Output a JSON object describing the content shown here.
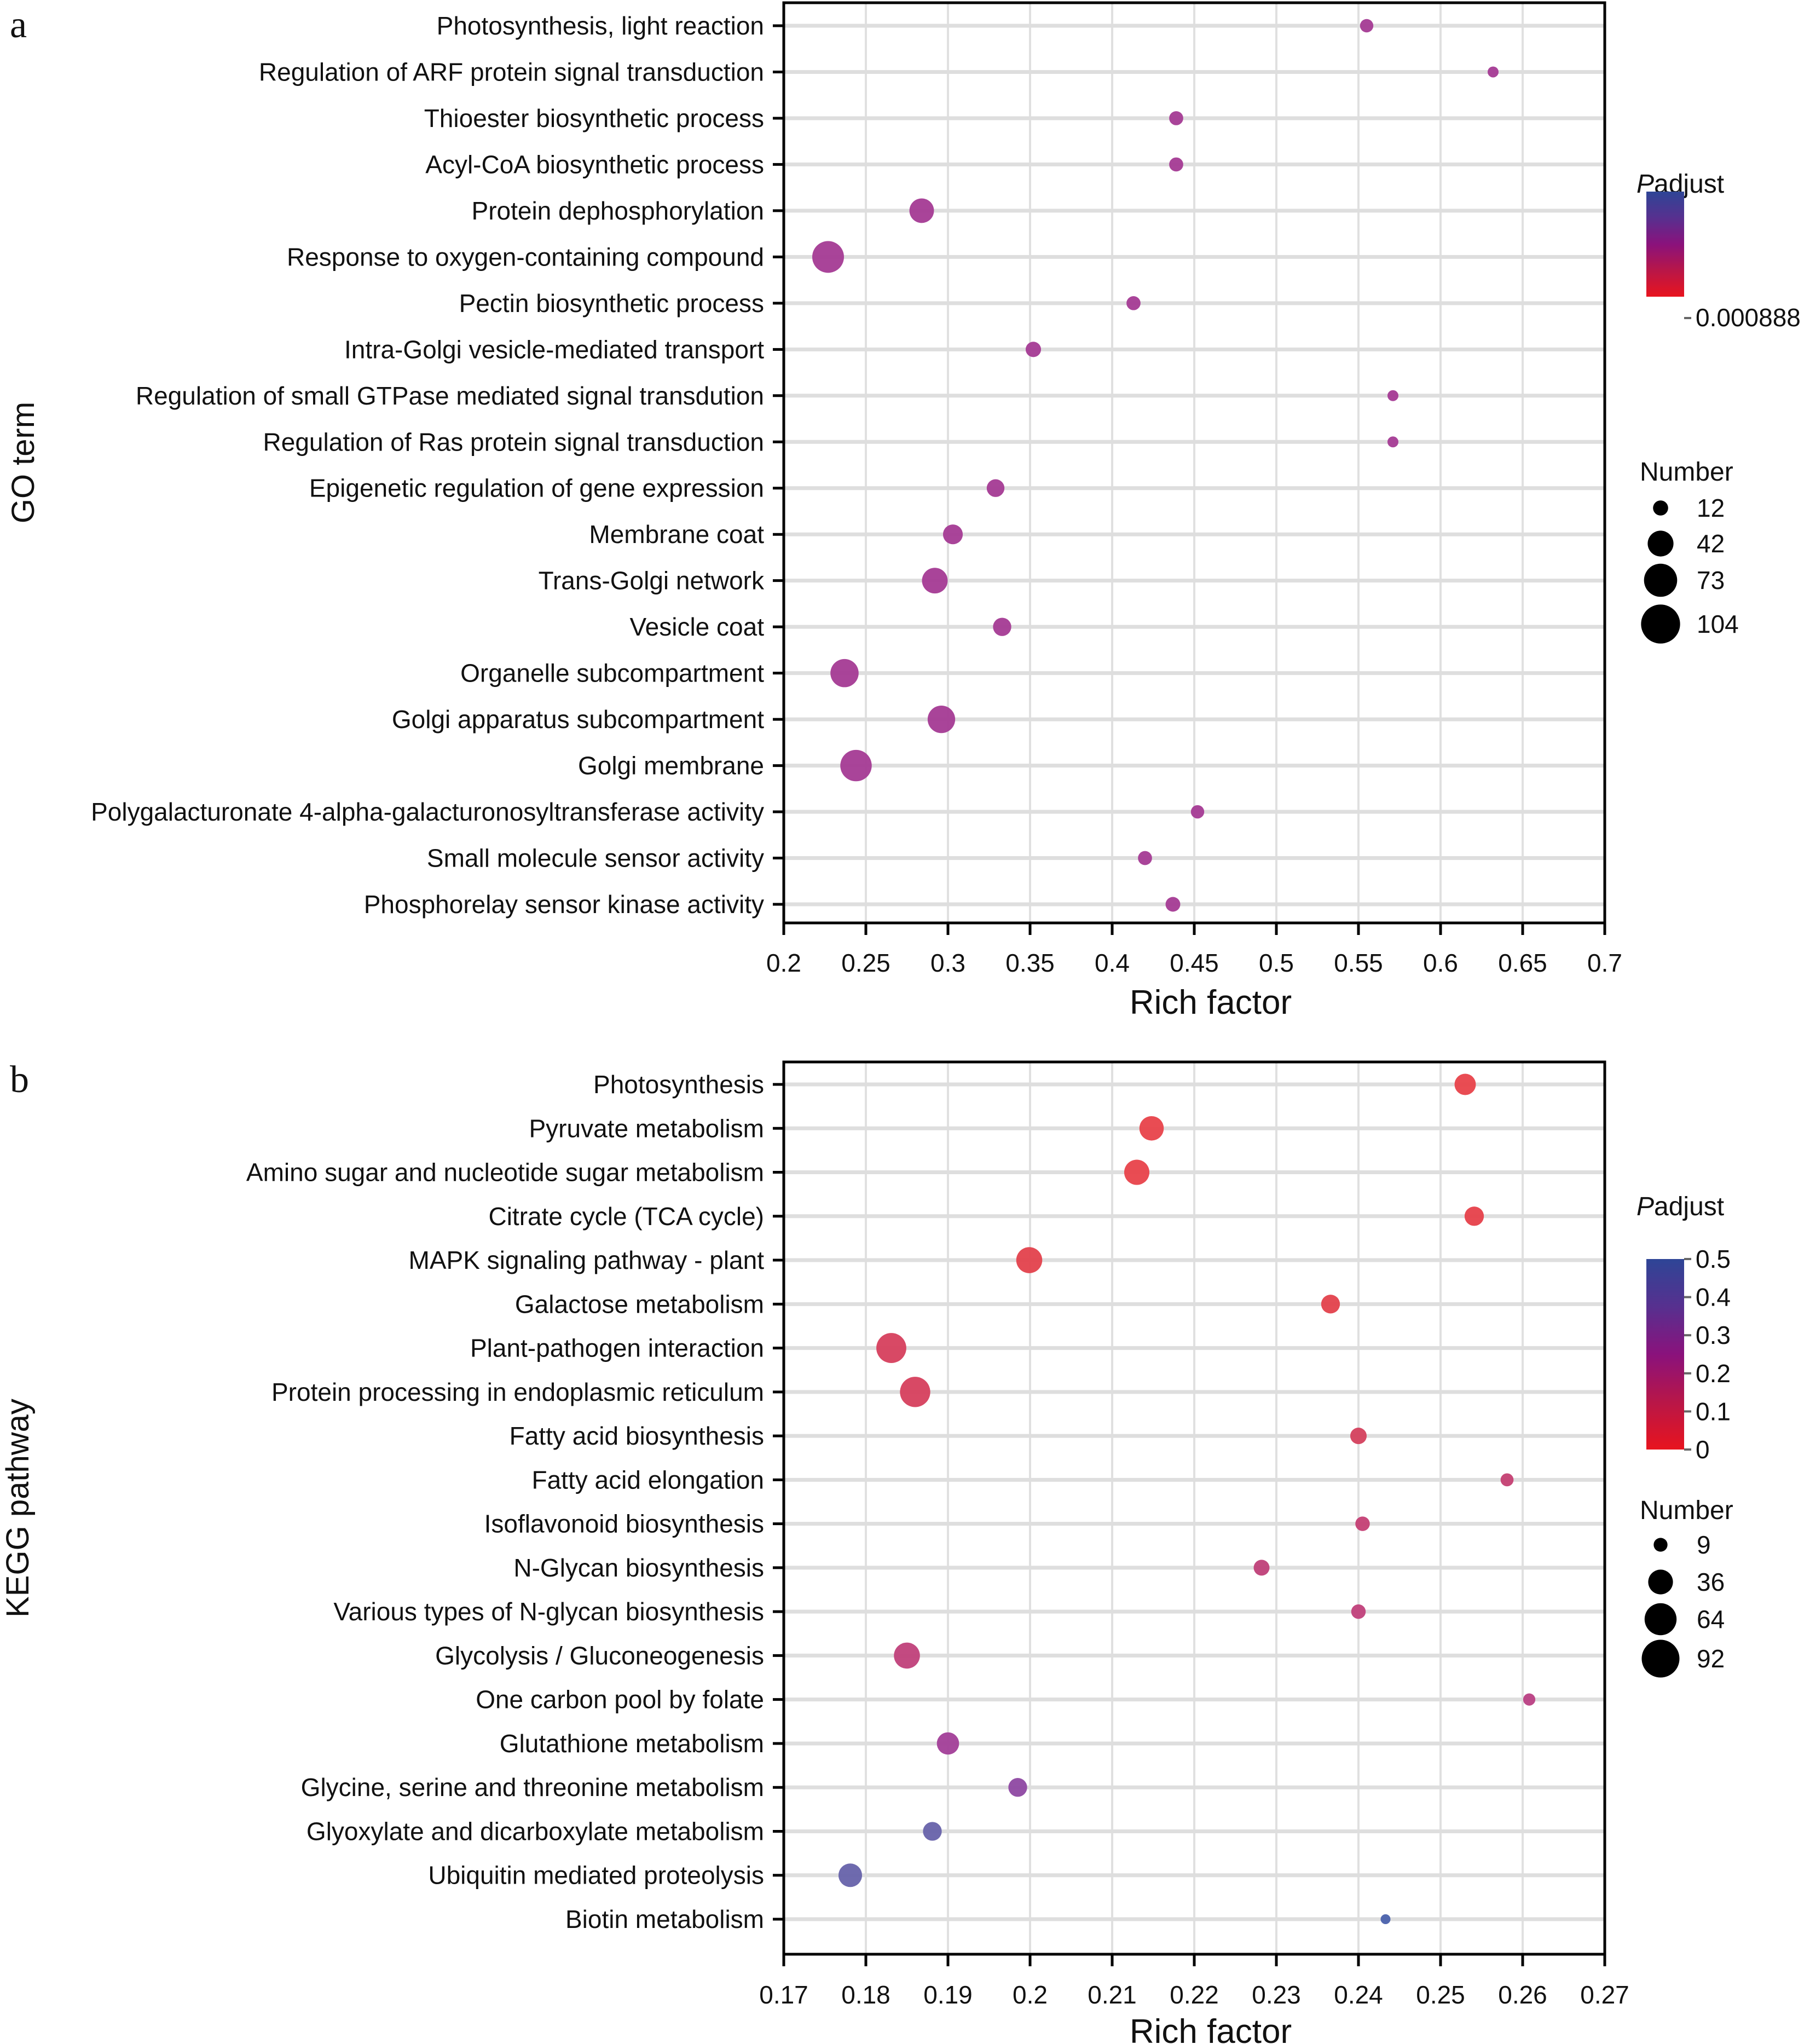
{
  "chart_data": [
    {
      "type": "scatter",
      "panel": "a",
      "title": "",
      "xlabel": "Rich factor",
      "ylabel": "GO term",
      "xlim": [
        0.2,
        0.7
      ],
      "xticks": [
        "0.2",
        "0.25",
        "0.3",
        "0.35",
        "0.4",
        "0.45",
        "0.5",
        "0.55",
        "0.6",
        "0.65",
        "0.7"
      ],
      "grid": true,
      "color_legend": {
        "title_italic": "P",
        "title_rest": "adjust",
        "labels": [
          "0.000888"
        ],
        "colors": {
          "low": "#e8141e",
          "mid": "#8a127c",
          "high": "#2e4596"
        }
      },
      "size_legend": {
        "title": "Number",
        "values": [
          12,
          42,
          73,
          104
        ]
      },
      "categories": [
        "Photosynthesis, light reaction",
        "Regulation of ARF protein signal transduction",
        "Thioester biosynthetic process",
        "Acyl-CoA biosynthetic process",
        "Protein dephosphorylation",
        "Response to oxygen-containing compound",
        "Pectin biosynthetic process",
        "Intra-Golgi vesicle-mediated transport",
        "Regulation of small GTPase mediated signal transdution",
        "Regulation of Ras protein signal transduction",
        "Epigenetic regulation of gene expression",
        "Membrane coat",
        "Trans-Golgi network",
        "Vesicle coat",
        "Organelle subcompartment",
        "Golgi apparatus subcompartment",
        "Golgi membrane",
        "Polygalacturonate 4-alpha-galacturonosyltransferase activity",
        "Small molecule sensor activity",
        "Phosphorelay sensor kinase activity"
      ],
      "points": [
        {
          "x": 0.555,
          "number": 18,
          "color": "#a43a94"
        },
        {
          "x": 0.632,
          "number": 12,
          "color": "#a43a94"
        },
        {
          "x": 0.439,
          "number": 20,
          "color": "#a43a94"
        },
        {
          "x": 0.439,
          "number": 20,
          "color": "#a43a94"
        },
        {
          "x": 0.284,
          "number": 62,
          "color": "#a43a94"
        },
        {
          "x": 0.227,
          "number": 104,
          "color": "#a43a94"
        },
        {
          "x": 0.413,
          "number": 20,
          "color": "#a43a94"
        },
        {
          "x": 0.352,
          "number": 24,
          "color": "#a43a94"
        },
        {
          "x": 0.571,
          "number": 12,
          "color": "#a43a94"
        },
        {
          "x": 0.571,
          "number": 12,
          "color": "#a43a94"
        },
        {
          "x": 0.329,
          "number": 32,
          "color": "#a43a94"
        },
        {
          "x": 0.303,
          "number": 40,
          "color": "#a43a94"
        },
        {
          "x": 0.292,
          "number": 68,
          "color": "#a43a94"
        },
        {
          "x": 0.333,
          "number": 34,
          "color": "#a43a94"
        },
        {
          "x": 0.237,
          "number": 82,
          "color": "#a43a94"
        },
        {
          "x": 0.296,
          "number": 78,
          "color": "#a43a94"
        },
        {
          "x": 0.244,
          "number": 102,
          "color": "#a43a94"
        },
        {
          "x": 0.452,
          "number": 18,
          "color": "#a43a94"
        },
        {
          "x": 0.42,
          "number": 20,
          "color": "#a43a94"
        },
        {
          "x": 0.437,
          "number": 22,
          "color": "#a43a94"
        }
      ]
    },
    {
      "type": "scatter",
      "panel": "b",
      "title": "",
      "xlabel": "Rich factor",
      "ylabel": "KEGG pathway",
      "xlim": [
        0.17,
        0.27
      ],
      "xticks": [
        "0.17",
        "0.18",
        "0.19",
        "0.2",
        "0.21",
        "0.22",
        "0.23",
        "0.24",
        "0.25",
        "0.26",
        "0.27"
      ],
      "grid": true,
      "color_legend": {
        "title_italic": "P",
        "title_rest": "adjust",
        "range": [
          0,
          0.5
        ],
        "labels": [
          "0.5",
          "0.4",
          "0.3",
          "0.2",
          "0.1",
          "0"
        ],
        "colors": {
          "low": "#e8141e",
          "mid": "#8a127c",
          "high": "#2e4596"
        }
      },
      "size_legend": {
        "title": "Number",
        "values": [
          9,
          36,
          64,
          92
        ]
      },
      "categories": [
        "Photosynthesis",
        "Pyruvate metabolism",
        "Amino sugar and nucleotide sugar metabolism",
        "Citrate cycle (TCA cycle)",
        "MAPK signaling pathway - plant",
        "Galactose metabolism",
        "Plant-pathogen interaction",
        "Protein processing in endoplasmic reticulum",
        "Fatty acid biosynthesis",
        "Fatty acid elongation",
        "Isoflavonoid biosynthesis",
        "N-Glycan biosynthesis",
        "Various types of N-glycan biosynthesis",
        "Glycolysis / Gluconeogenesis",
        "One carbon pool by folate",
        "Glutathione metabolism",
        "Glycine, serine and threonine metabolism",
        "Glyoxylate and dicarboxylate metabolism",
        "Ubiquitin mediated proteolysis",
        "Biotin metabolism"
      ],
      "points": [
        {
          "x": 0.253,
          "number": 44,
          "padjust": 0.01,
          "color": "#e8424a"
        },
        {
          "x": 0.2148,
          "number": 58,
          "padjust": 0.01,
          "color": "#e8424a"
        },
        {
          "x": 0.213,
          "number": 62,
          "padjust": 0.01,
          "color": "#e8424a"
        },
        {
          "x": 0.2541,
          "number": 36,
          "padjust": 0.02,
          "color": "#e6404a"
        },
        {
          "x": 0.1999,
          "number": 66,
          "padjust": 0.03,
          "color": "#e3414c"
        },
        {
          "x": 0.2366,
          "number": 34,
          "padjust": 0.03,
          "color": "#e3414c"
        },
        {
          "x": 0.1831,
          "number": 88,
          "padjust": 0.08,
          "color": "#d63f5d"
        },
        {
          "x": 0.186,
          "number": 90,
          "padjust": 0.08,
          "color": "#d63f5d"
        },
        {
          "x": 0.24,
          "number": 26,
          "padjust": 0.09,
          "color": "#d4405d"
        },
        {
          "x": 0.2581,
          "number": 16,
          "padjust": 0.15,
          "color": "#c43f72"
        },
        {
          "x": 0.2405,
          "number": 20,
          "padjust": 0.15,
          "color": "#c43f74"
        },
        {
          "x": 0.2282,
          "number": 24,
          "padjust": 0.17,
          "color": "#bf3f78"
        },
        {
          "x": 0.24,
          "number": 20,
          "padjust": 0.17,
          "color": "#c0407a"
        },
        {
          "x": 0.185,
          "number": 66,
          "padjust": 0.18,
          "color": "#c0407a"
        },
        {
          "x": 0.2608,
          "number": 14,
          "padjust": 0.2,
          "color": "#b93f83"
        },
        {
          "x": 0.19,
          "number": 48,
          "padjust": 0.27,
          "color": "#a23e98"
        },
        {
          "x": 0.1985,
          "number": 34,
          "padjust": 0.31,
          "color": "#8e48a2"
        },
        {
          "x": 0.1881,
          "number": 34,
          "padjust": 0.44,
          "color": "#6762aa"
        },
        {
          "x": 0.1781,
          "number": 54,
          "padjust": 0.44,
          "color": "#6662aa"
        },
        {
          "x": 0.2433,
          "number": 9,
          "padjust": 0.48,
          "color": "#4a61ac"
        }
      ]
    }
  ]
}
